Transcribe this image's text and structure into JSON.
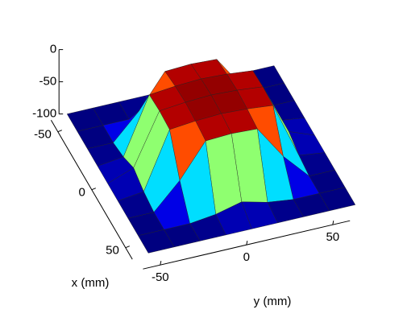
{
  "chart_data": {
    "type": "surface",
    "xlabel": "x (mm)",
    "ylabel": "y (mm)",
    "x": [
      -60,
      -45,
      -30,
      -15,
      0,
      15,
      30,
      45,
      60
    ],
    "y": [
      -60,
      -45,
      -30,
      -15,
      0,
      15,
      30,
      45,
      60
    ],
    "z": [
      [
        -100,
        -100,
        -100,
        -100,
        -100,
        -100,
        -100,
        -100,
        -100
      ],
      [
        -100,
        -100,
        -100,
        -95,
        -85,
        -95,
        -100,
        -100,
        -100
      ],
      [
        -100,
        -100,
        -60,
        -8,
        -6,
        -8,
        -60,
        -100,
        -100
      ],
      [
        -100,
        -95,
        -8,
        -4,
        -2,
        -4,
        -8,
        -95,
        -100
      ],
      [
        -100,
        -85,
        -6,
        -2,
        0,
        -2,
        -6,
        -85,
        -100
      ],
      [
        -100,
        -95,
        -8,
        -4,
        -2,
        -4,
        -8,
        -95,
        -100
      ],
      [
        -100,
        -100,
        -60,
        -8,
        -6,
        -8,
        -60,
        -100,
        -100
      ],
      [
        -100,
        -100,
        -100,
        -95,
        -85,
        -95,
        -100,
        -100,
        -100
      ],
      [
        -100,
        -100,
        -100,
        -100,
        -100,
        -100,
        -100,
        -100,
        -100
      ]
    ],
    "xlim": [
      -60,
      60
    ],
    "ylim": [
      -60,
      60
    ],
    "zlim": [
      -100,
      0
    ],
    "xticks": [
      -50,
      0,
      50
    ],
    "yticks": [
      -50,
      0,
      50
    ],
    "zticks": [
      0,
      -50,
      -100
    ],
    "colormap": "jet"
  }
}
